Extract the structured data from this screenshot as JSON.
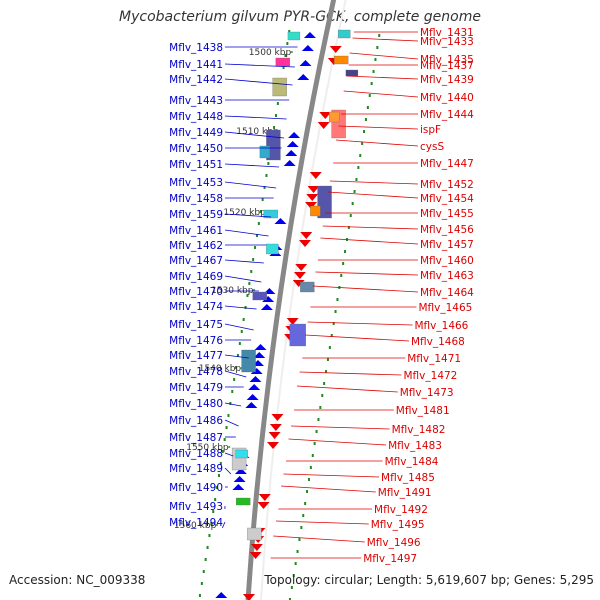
{
  "title": "Mycobacterium gilvum PYR-GCK, complete genome",
  "footer": {
    "accession": "Accession: NC_009338",
    "summary": "Topology: circular; Length: 5,619,607 bp; Genes: 5,295"
  },
  "colors": {
    "forward_gene": "#0000ee",
    "reverse_gene": "#ee0000",
    "backbone": "#888888",
    "tick": "#228822",
    "forward_label": "#0000cc",
    "reverse_label": "#dd0000"
  },
  "kbp_ticks": [
    "1500 kbp",
    "1510 kbp",
    "1520 kbp",
    "1530 kbp",
    "1540 kbp",
    "1550 kbp",
    "1560 kbp"
  ],
  "left_genes": [
    "Mflv_1438",
    "Mflv_1441",
    "Mflv_1442",
    "Mflv_1443",
    "Mflv_1448",
    "Mflv_1449",
    "Mflv_1450",
    "Mflv_1451",
    "Mflv_1453",
    "Mflv_1458",
    "Mflv_1459",
    "Mflv_1461",
    "Mflv_1462",
    "Mflv_1467",
    "Mflv_1469",
    "Mflv_1470",
    "Mflv_1474",
    "Mflv_1475",
    "Mflv_1476",
    "Mflv_1477",
    "Mflv_1478",
    "Mflv_1479",
    "Mflv_1480",
    "Mflv_1486",
    "Mflv_1487",
    "Mflv_1488",
    "Mflv_1489",
    "Mflv_1490",
    "Mflv_1493",
    "Mflv_1494"
  ],
  "right_genes": [
    "Mflv_1431",
    "Mflv_1433",
    "Mflv_1435",
    "Mflv_1437",
    "Mflv_1439",
    "Mflv_1440",
    "Mflv_1444",
    "ispF",
    "cysS",
    "Mflv_1447",
    "Mflv_1452",
    "Mflv_1454",
    "Mflv_1455",
    "Mflv_1456",
    "Mflv_1457",
    "Mflv_1460",
    "Mflv_1463",
    "Mflv_1464",
    "Mflv_1465",
    "Mflv_1466",
    "Mflv_1468",
    "Mflv_1471",
    "Mflv_1472",
    "Mflv_1473",
    "Mflv_1481",
    "Mflv_1482",
    "Mflv_1483",
    "Mflv_1484",
    "Mflv_1485",
    "Mflv_1491",
    "Mflv_1492",
    "Mflv_1495",
    "Mflv_1496",
    "Mflv_1497"
  ]
}
